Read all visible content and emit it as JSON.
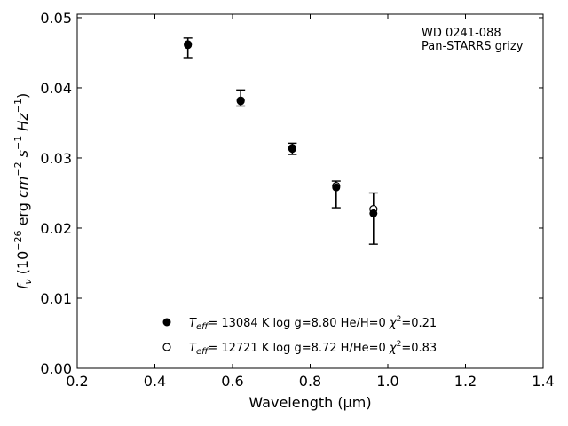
{
  "chart_data": {
    "type": "scatter",
    "xlabel": "Wavelength (μm)",
    "ylabel": "fν (10⁻²⁶ erg cm⁻² s⁻¹ Hz⁻¹)",
    "xlim": [
      0.2,
      1.4
    ],
    "ylim": [
      0.0,
      0.0505
    ],
    "x_ticks": [
      0.2,
      0.4,
      0.6,
      0.8,
      1.0,
      1.2,
      1.4
    ],
    "x_tick_labels": [
      "0.2",
      "0.4",
      "0.6",
      "0.8",
      "1.0",
      "1.2",
      "1.4"
    ],
    "y_ticks": [
      0.0,
      0.01,
      0.02,
      0.03,
      0.04,
      0.05
    ],
    "y_tick_labels": [
      "0.00",
      "0.01",
      "0.02",
      "0.03",
      "0.04",
      "0.05"
    ],
    "grid": false,
    "legend_position": "bottom-center",
    "annotation": [
      "WD 0241-088",
      "Pan-STARRS grizy"
    ],
    "observed": {
      "x": [
        0.485,
        0.621,
        0.754,
        0.867,
        0.963
      ],
      "y": [
        0.0457,
        0.0386,
        0.0313,
        0.0256,
        0.0217
      ],
      "yerr_low": [
        0.0014,
        0.0012,
        0.0008,
        0.0027,
        0.004
      ],
      "yerr_high": [
        0.0014,
        0.0011,
        0.0008,
        0.0011,
        0.0033
      ]
    },
    "series": [
      {
        "name": "T_eff= 13084 K  log g=8.80  He/H=0  χ²=0.21",
        "marker": "filled",
        "x": [
          0.485,
          0.621,
          0.754,
          0.867,
          0.963
        ],
        "y": [
          0.0461,
          0.0381,
          0.0313,
          0.0258,
          0.0221
        ]
      },
      {
        "name": "T_eff= 12721 K  log g=8.72  H/He=0  χ²=0.83",
        "marker": "open",
        "x": [
          0.485,
          0.621,
          0.754,
          0.867,
          0.963
        ],
        "y": [
          0.0462,
          0.0382,
          0.0314,
          0.026,
          0.0227
        ]
      }
    ],
    "legend": [
      {
        "teff": "= 13084 K  log g=8.80  He/H=0  ",
        "chi": "=0.21"
      },
      {
        "teff": "= 12721 K  log g=8.72  H/He=0  ",
        "chi": "=0.83"
      }
    ],
    "colors": {
      "marker": "#000000",
      "background": "#ffffff"
    }
  }
}
